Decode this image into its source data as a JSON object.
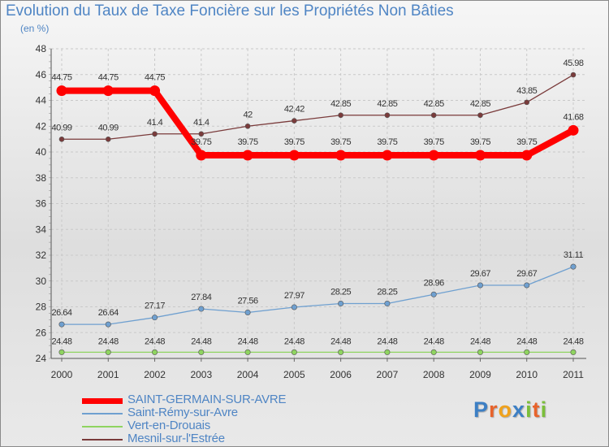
{
  "chart_data": {
    "type": "line",
    "title": "Evolution du Taux de Taxe Foncière sur les Propriétés Non Bâties",
    "ylabel": "(en %)",
    "xlabel": "",
    "ylim": [
      24,
      48
    ],
    "yticks": [
      "24",
      "26",
      "28",
      "30",
      "32",
      "34",
      "36",
      "38",
      "40",
      "42",
      "44",
      "46",
      "48"
    ],
    "categories": [
      "2000",
      "2001",
      "2002",
      "2003",
      "2004",
      "2005",
      "2006",
      "2007",
      "2008",
      "2009",
      "2010",
      "2011"
    ],
    "series": [
      {
        "name": "SAINT-GERMAIN-SUR-AVRE",
        "color": "#ff0000",
        "values": [
          44.75,
          44.75,
          44.75,
          39.75,
          39.75,
          39.75,
          39.75,
          39.75,
          39.75,
          39.75,
          39.75,
          41.68
        ],
        "labels": [
          "44.75",
          "44.75",
          "44.75",
          "39.75",
          "39.75",
          "39.75",
          "39.75",
          "39.75",
          "39.75",
          "39.75",
          "39.75",
          "41.68"
        ]
      },
      {
        "name": "Saint-Rémy-sur-Avre",
        "color": "#6fa0d0",
        "values": [
          26.64,
          26.64,
          27.17,
          27.84,
          27.56,
          27.97,
          28.25,
          28.25,
          28.96,
          29.67,
          29.67,
          31.11
        ],
        "labels": [
          "26.64",
          "26.64",
          "27.17",
          "27.84",
          "27.56",
          "27.97",
          "28.25",
          "28.25",
          "28.96",
          "29.67",
          "29.67",
          "31.11"
        ]
      },
      {
        "name": "Vert-en-Drouais",
        "color": "#8fd460",
        "values": [
          24.48,
          24.48,
          24.48,
          24.48,
          24.48,
          24.48,
          24.48,
          24.48,
          24.48,
          24.48,
          24.48,
          24.48
        ],
        "labels": [
          "24.48",
          "24.48",
          "24.48",
          "24.48",
          "24.48",
          "24.48",
          "24.48",
          "24.48",
          "24.48",
          "24.48",
          "24.48",
          "24.48"
        ]
      },
      {
        "name": "Mesnil-sur-l'Estrée",
        "color": "#7a3b3b",
        "values": [
          40.99,
          40.99,
          41.4,
          41.4,
          42,
          42.42,
          42.85,
          42.85,
          42.85,
          42.85,
          43.85,
          45.98
        ],
        "labels": [
          "40.99",
          "40.99",
          "41.4",
          "41.4",
          "42",
          "42.42",
          "42.85",
          "42.85",
          "42.85",
          "42.85",
          "43.85",
          "45.98"
        ]
      }
    ],
    "legend_position": "bottom-left",
    "grid": true
  },
  "logo": {
    "letters": [
      "P",
      "r",
      "o",
      "x",
      "i",
      "t",
      "i"
    ],
    "colors": [
      "#3d7fc4",
      "#e8632b",
      "#f0a21c",
      "#3d7fc4",
      "#7bbf3a",
      "#e8632b",
      "#7bbf3a"
    ]
  }
}
